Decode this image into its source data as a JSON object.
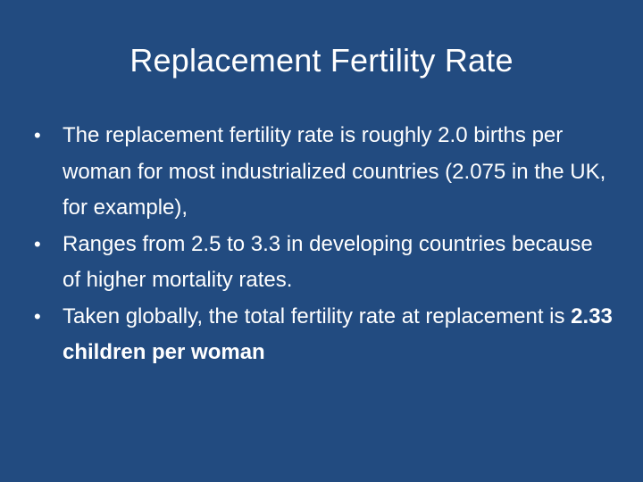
{
  "slide": {
    "title": "Replacement Fertility Rate",
    "bullet_marker": "•",
    "bullets": [
      {
        "text": "The replacement fertility rate is roughly 2.0 births per woman for most industrialized countries (2.075 in the UK, for example),"
      },
      {
        "text": "Ranges from 2.5 to 3.3 in developing countries because of higher mortality rates."
      },
      {
        "text_before": "Taken globally, the total fertility rate at replacement is ",
        "text_bold": "2.33 children per woman"
      }
    ]
  },
  "colors": {
    "background": "#224b80",
    "text": "#ffffff"
  }
}
